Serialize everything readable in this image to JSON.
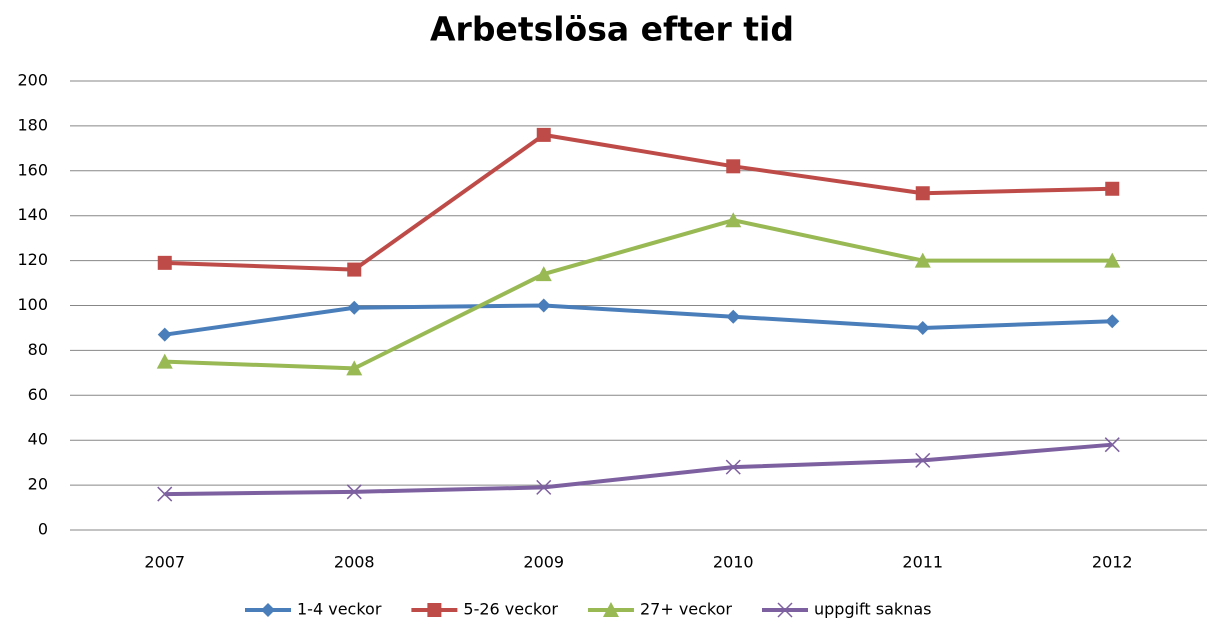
{
  "chart_data": {
    "type": "line",
    "title": "Arbetslösa efter tid",
    "categories": [
      "2007",
      "2008",
      "2009",
      "2010",
      "2011",
      "2012"
    ],
    "series": [
      {
        "name": "1-4 veckor",
        "color": "#4a7ebb",
        "marker": "diamond",
        "values": [
          87,
          99,
          100,
          95,
          90,
          93
        ]
      },
      {
        "name": "5-26 veckor",
        "color": "#be4b48",
        "marker": "square",
        "values": [
          119,
          116,
          176,
          162,
          150,
          152
        ]
      },
      {
        "name": "27+ veckor",
        "color": "#98b954",
        "marker": "triangle",
        "values": [
          75,
          72,
          114,
          138,
          120,
          120
        ]
      },
      {
        "name": "uppgift saknas",
        "color": "#7d60a0",
        "marker": "x",
        "values": [
          16,
          17,
          19,
          28,
          31,
          38
        ]
      }
    ],
    "ylim": [
      0,
      200
    ],
    "yticks": [
      0,
      20,
      40,
      60,
      80,
      100,
      120,
      140,
      160,
      180,
      200
    ],
    "grid": true,
    "legend": "bottom"
  }
}
